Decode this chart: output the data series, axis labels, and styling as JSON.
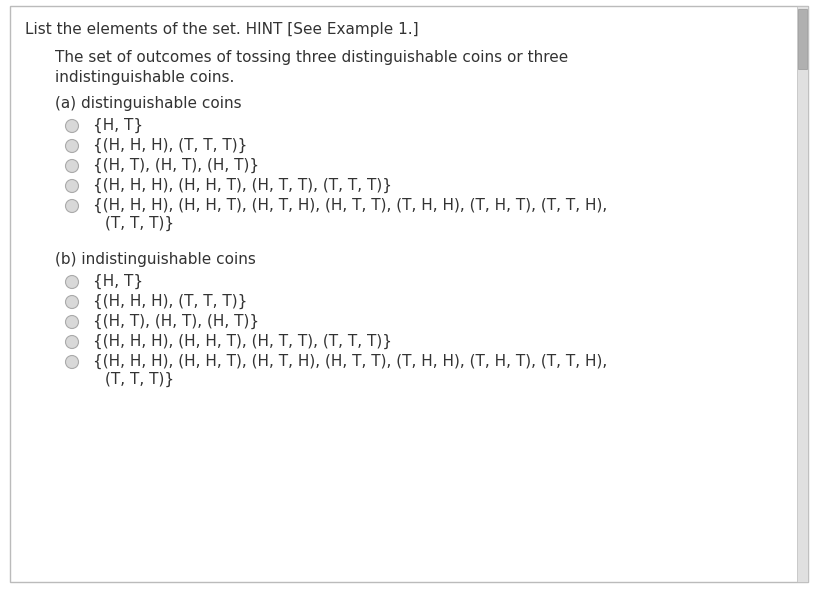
{
  "bg_color": "#ffffff",
  "border_color": "#cccccc",
  "text_color": "#333333",
  "title": "List the elements of the set. HINT [See Example 1.]",
  "subtitle_line1": "The set of outcomes of tossing three distinguishable coins or three",
  "subtitle_line2": "indistinguishable coins.",
  "section_a": "(a) distinguishable coins",
  "section_b": "(b) indistinguishable coins",
  "options_a": [
    [
      "{H, T}",
      null
    ],
    [
      "{(H, H, H), (T, T, T)}",
      null
    ],
    [
      "{(H, T), (H, T), (H, T)}",
      null
    ],
    [
      "{(H, H, H), (H, H, T), (H, T, T), (T, T, T)}",
      null
    ],
    [
      "{(H, H, H), (H, H, T), (H, T, H), (H, T, T), (T, H, H), (T, H, T), (T, T, H),",
      "(T, T, T)}"
    ]
  ],
  "options_b": [
    [
      "{H, T}",
      null
    ],
    [
      "{(H, H, H), (T, T, T)}",
      null
    ],
    [
      "{(H, T), (H, T), (H, T)}",
      null
    ],
    [
      "{(H, H, H), (H, H, T), (H, T, T), (T, T, T)}",
      null
    ],
    [
      "{(H, H, H), (H, H, T), (H, T, H), (H, T, T), (T, H, H), (T, H, T), (T, T, H),",
      "(T, T, T)}"
    ]
  ],
  "font_size": 11.0,
  "circle_face_color": "#d8d8d8",
  "circle_edge_color": "#aaaaaa",
  "scrollbar_color": "#c8c8c8",
  "scrollbar_thumb": "#a0a0a0"
}
